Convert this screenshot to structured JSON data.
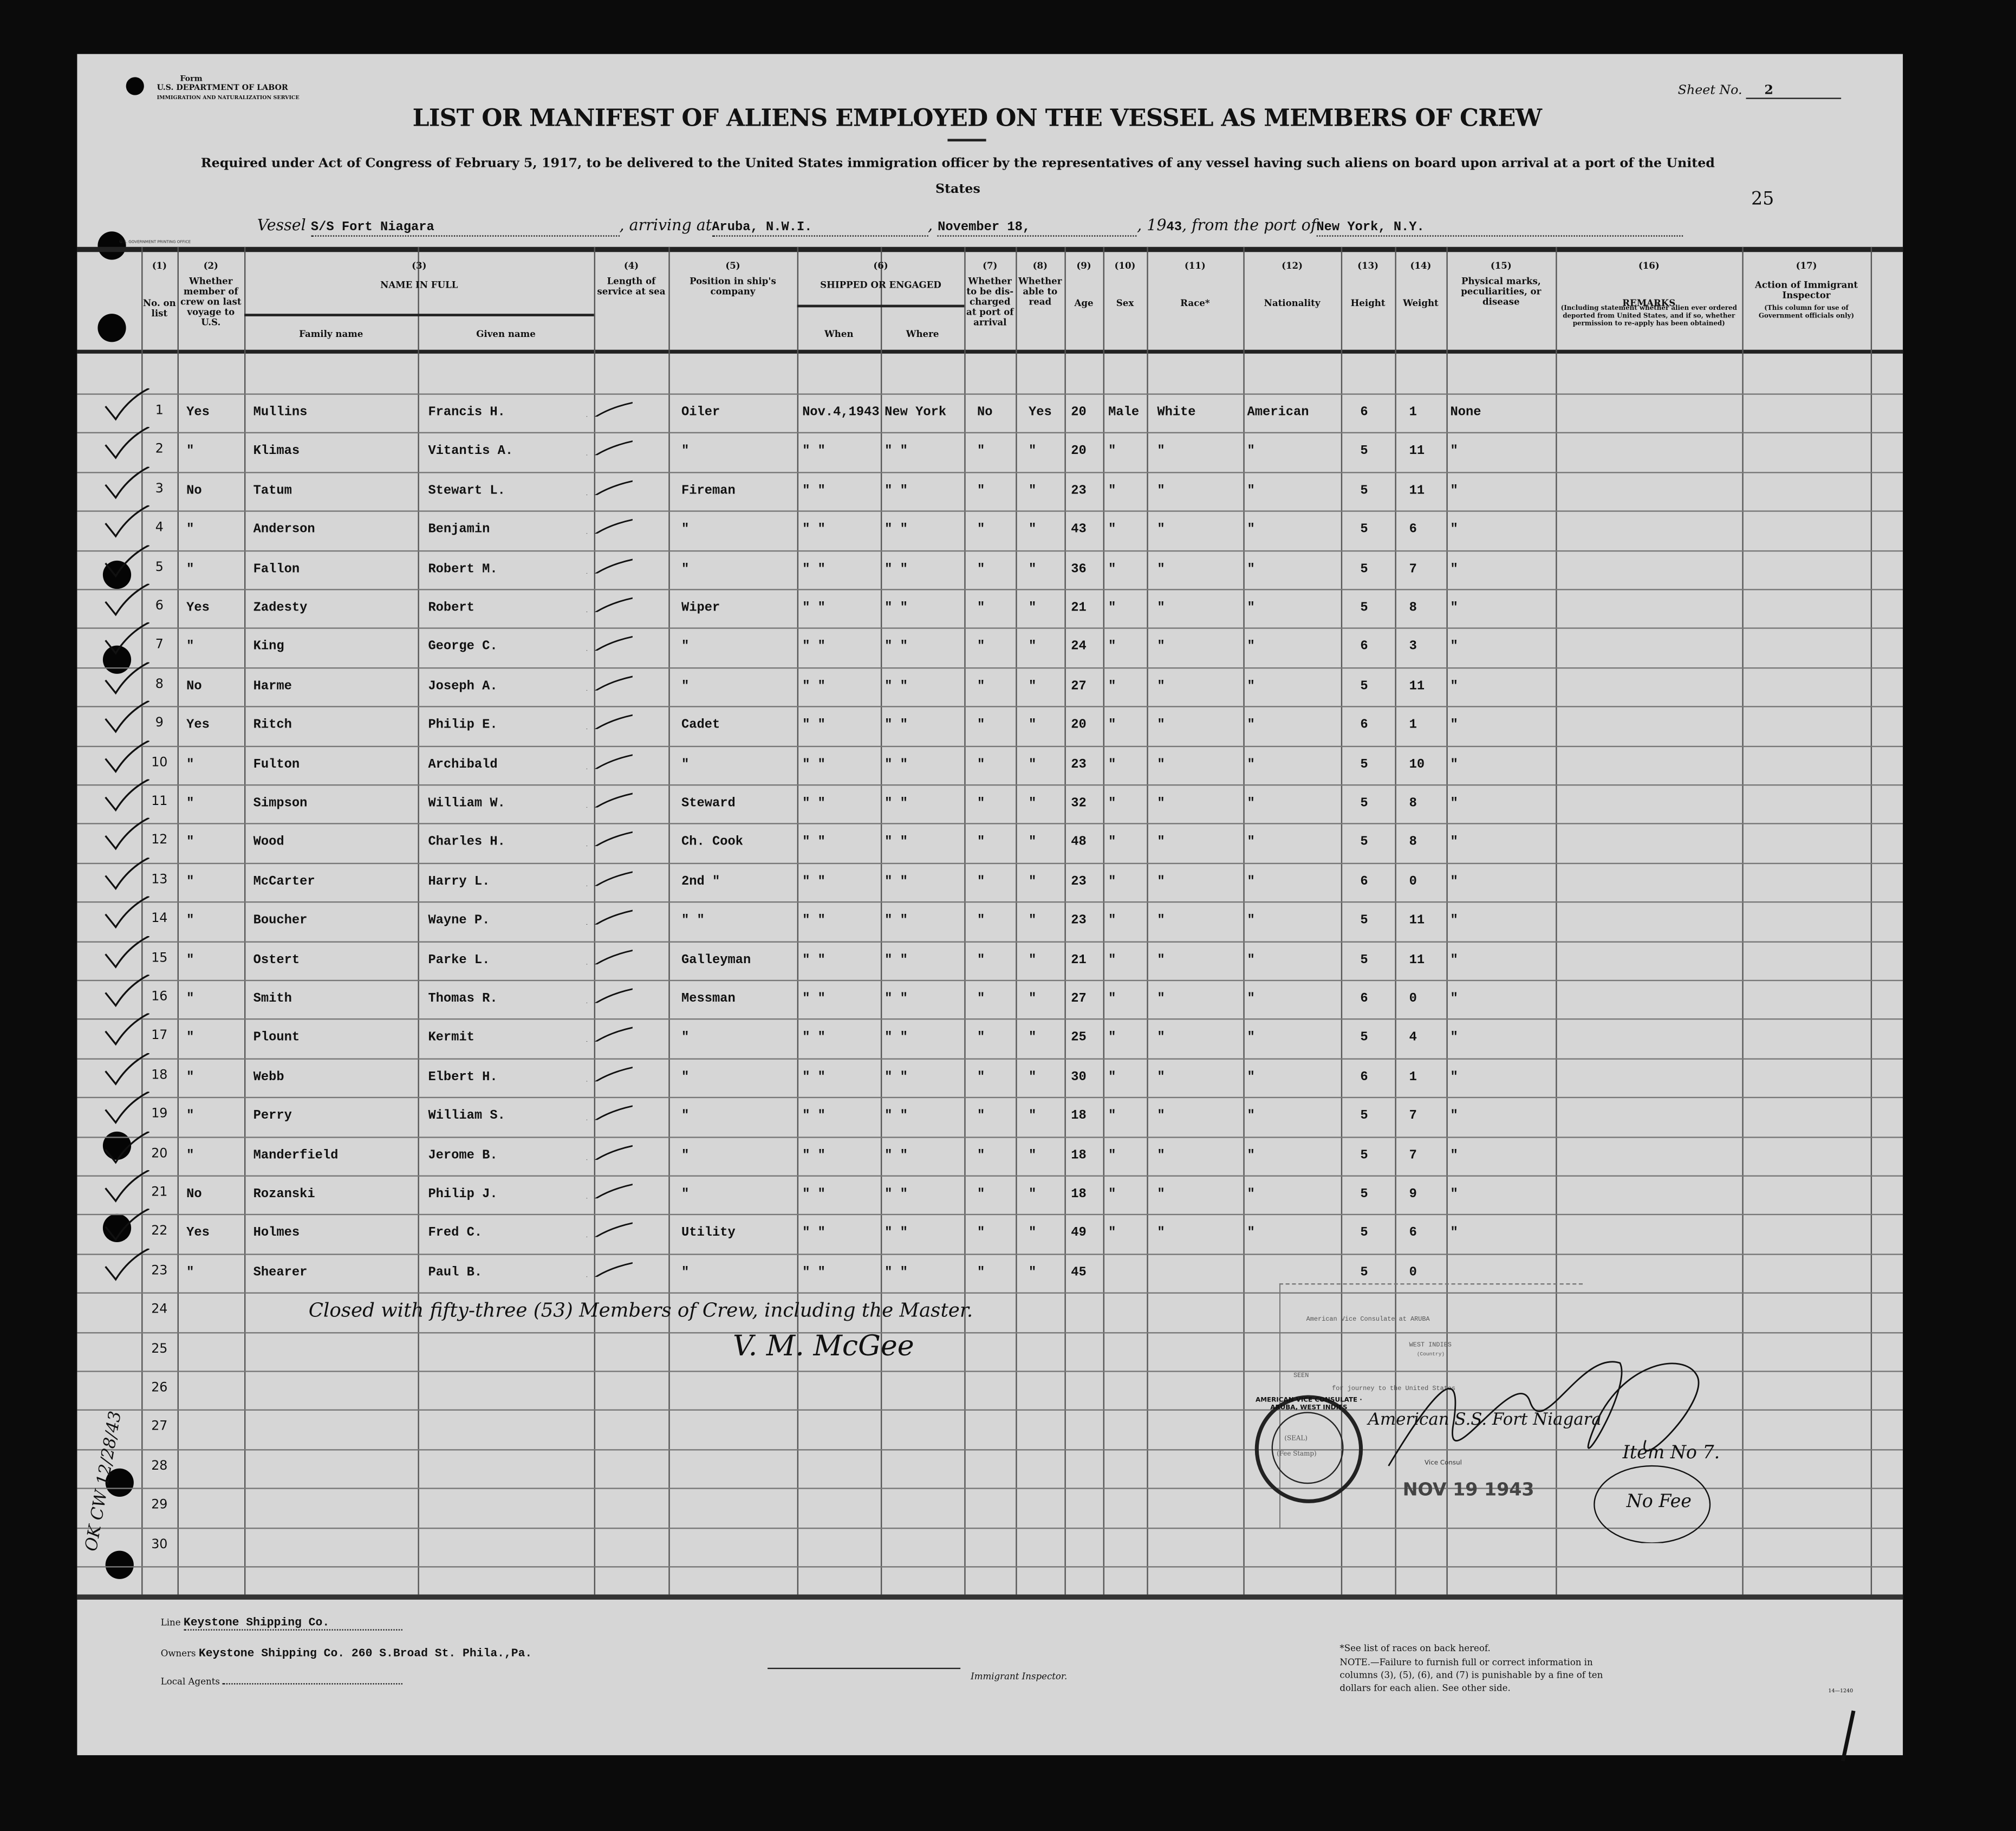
{
  "form": {
    "form_label": "Form",
    "department": "U.S. DEPARTMENT OF LABOR",
    "service": "IMMIGRATION AND NATURALIZATION SERVICE",
    "sheet_label": "Sheet No.",
    "sheet_no": "2",
    "title": "LIST OR MANIFEST OF ALIENS EMPLOYED ON THE VESSEL AS MEMBERS OF CREW",
    "subtitle": "Required under Act of Congress of February 5, 1917, to be delivered to the United States immigration officer by the representatives of any vessel having such aliens on board upon arrival at a port of the United States",
    "page_number": "25",
    "printer_mark": "U.S. GOVERNMENT PRINTING OFFICE"
  },
  "voyage": {
    "vessel_label": "Vessel",
    "vessel": "S/S Fort Niagara",
    "arriving_label": ", arriving at",
    "arriving_at": "Aruba, N.W.I.",
    "date": "November 18,",
    "year_prefix": ", 19",
    "year": "43",
    "from_label": ", from the port of",
    "from_port": "New York, N.Y."
  },
  "columns": [
    {
      "num": "(1)",
      "label": "No. on list"
    },
    {
      "num": "(2)",
      "label": "Whether member of crew on last voyage to U.S."
    },
    {
      "num": "(3)",
      "label": "NAME IN FULL",
      "sub": [
        "Family name",
        "Given name"
      ]
    },
    {
      "num": "(4)",
      "label": "Length of service at sea"
    },
    {
      "num": "(5)",
      "label": "Position in ship's company"
    },
    {
      "num": "(6)",
      "label": "SHIPPED OR ENGAGED",
      "sub": [
        "When",
        "Where"
      ]
    },
    {
      "num": "(7)",
      "label": "Whether to be dis-charged at port of arrival"
    },
    {
      "num": "(8)",
      "label": "Whether able to read"
    },
    {
      "num": "(9)",
      "label": "Age"
    },
    {
      "num": "(10)",
      "label": "Sex"
    },
    {
      "num": "(11)",
      "label": "Race*"
    },
    {
      "num": "(12)",
      "label": "Nationality"
    },
    {
      "num": "(13)",
      "label": "Height"
    },
    {
      "num": "(14)",
      "label": "Weight"
    },
    {
      "num": "(15)",
      "label": "Physical marks, peculiarities, or disease"
    },
    {
      "num": "(16)",
      "label": "REMARKS",
      "note": "(Including statement whether alien ever ordered deported from United States, and if so, whether permission to re-apply has been obtained)"
    },
    {
      "num": "(17)",
      "label": "Action of Immigrant Inspector",
      "note": "(This column for use of Government officials only)"
    }
  ],
  "rows": [
    {
      "no": "1",
      "last": "Yes",
      "family": "Mullins",
      "given": "Francis H.",
      "pos": "Oiler",
      "when": "Nov.4,1943",
      "where": "New York",
      "disch": "No",
      "read": "Yes",
      "age": "20",
      "sex": "Male",
      "race": "White",
      "nat": "American",
      "height": "6",
      "weight": "1",
      "marks": "None"
    },
    {
      "no": "2",
      "last": "\"",
      "family": "Klimas",
      "given": "Vitantis A.",
      "pos": "\"",
      "when": "\"  \"",
      "where": "\"  \"",
      "disch": "\"",
      "read": "\"",
      "age": "20",
      "sex": "\"",
      "race": "\"",
      "nat": "\"",
      "height": "5",
      "weight": "11",
      "marks": "\""
    },
    {
      "no": "3",
      "last": "No",
      "family": "Tatum",
      "given": "Stewart L.",
      "pos": "Fireman",
      "when": "\"  \"",
      "where": "\"  \"",
      "disch": "\"",
      "read": "\"",
      "age": "23",
      "sex": "\"",
      "race": "\"",
      "nat": "\"",
      "height": "5",
      "weight": "11",
      "marks": "\""
    },
    {
      "no": "4",
      "last": "\"",
      "family": "Anderson",
      "given": "Benjamin",
      "pos": "\"",
      "when": "\"  \"",
      "where": "\"  \"",
      "disch": "\"",
      "read": "\"",
      "age": "43",
      "sex": "\"",
      "race": "\"",
      "nat": "\"",
      "height": "5",
      "weight": "6",
      "marks": "\""
    },
    {
      "no": "5",
      "last": "\"",
      "family": "Fallon",
      "given": "Robert M.",
      "pos": "\"",
      "when": "\"  \"",
      "where": "\"  \"",
      "disch": "\"",
      "read": "\"",
      "age": "36",
      "sex": "\"",
      "race": "\"",
      "nat": "\"",
      "height": "5",
      "weight": "7",
      "marks": "\""
    },
    {
      "no": "6",
      "last": "Yes",
      "family": "Zadesty",
      "given": "Robert",
      "pos": "Wiper",
      "when": "\"  \"",
      "where": "\"  \"",
      "disch": "\"",
      "read": "\"",
      "age": "21",
      "sex": "\"",
      "race": "\"",
      "nat": "\"",
      "height": "5",
      "weight": "8",
      "marks": "\""
    },
    {
      "no": "7",
      "last": "\"",
      "family": "King",
      "given": "George C.",
      "pos": "\"",
      "when": "\"  \"",
      "where": "\"  \"",
      "disch": "\"",
      "read": "\"",
      "age": "24",
      "sex": "\"",
      "race": "\"",
      "nat": "\"",
      "height": "6",
      "weight": "3",
      "marks": "\""
    },
    {
      "no": "8",
      "last": "No",
      "family": "Harme",
      "given": "Joseph A.",
      "pos": "\"",
      "when": "\"  \"",
      "where": "\"  \"",
      "disch": "\"",
      "read": "\"",
      "age": "27",
      "sex": "\"",
      "race": "\"",
      "nat": "\"",
      "height": "5",
      "weight": "11",
      "marks": "\""
    },
    {
      "no": "9",
      "last": "Yes",
      "family": "Ritch",
      "given": "Philip E.",
      "pos": "Cadet",
      "when": "\"  \"",
      "where": "\"  \"",
      "disch": "\"",
      "read": "\"",
      "age": "20",
      "sex": "\"",
      "race": "\"",
      "nat": "\"",
      "height": "6",
      "weight": "1",
      "marks": "\""
    },
    {
      "no": "10",
      "last": "\"",
      "family": "Fulton",
      "given": "Archibald",
      "pos": "\"",
      "when": "\"  \"",
      "where": "\"  \"",
      "disch": "\"",
      "read": "\"",
      "age": "23",
      "sex": "\"",
      "race": "\"",
      "nat": "\"",
      "height": "5",
      "weight": "10",
      "marks": "\""
    },
    {
      "no": "11",
      "last": "\"",
      "family": "Simpson",
      "given": "William W.",
      "pos": "Steward",
      "when": "\"  \"",
      "where": "\"  \"",
      "disch": "\"",
      "read": "\"",
      "age": "32",
      "sex": "\"",
      "race": "\"",
      "nat": "\"",
      "height": "5",
      "weight": "8",
      "marks": "\""
    },
    {
      "no": "12",
      "last": "\"",
      "family": "Wood",
      "given": "Charles H.",
      "pos": "Ch. Cook",
      "when": "\"  \"",
      "where": "\"  \"",
      "disch": "\"",
      "read": "\"",
      "age": "48",
      "sex": "\"",
      "race": "\"",
      "nat": "\"",
      "height": "5",
      "weight": "8",
      "marks": "\""
    },
    {
      "no": "13",
      "last": "\"",
      "family": "McCarter",
      "given": "Harry L.",
      "pos": "2nd \"",
      "when": "\"  \"",
      "where": "\"  \"",
      "disch": "\"",
      "read": "\"",
      "age": "23",
      "sex": "\"",
      "race": "\"",
      "nat": "\"",
      "height": "6",
      "weight": "0",
      "marks": "\""
    },
    {
      "no": "14",
      "last": "\"",
      "family": "Boucher",
      "given": "Wayne P.",
      "pos": " \"  \"",
      "when": "\"  \"",
      "where": "\"  \"",
      "disch": "\"",
      "read": "\"",
      "age": "23",
      "sex": "\"",
      "race": "\"",
      "nat": "\"",
      "height": "5",
      "weight": "11",
      "marks": "\""
    },
    {
      "no": "15",
      "last": "\"",
      "family": "Ostert",
      "given": "Parke L.",
      "pos": "Galleyman",
      "when": "\"  \"",
      "where": "\"  \"",
      "disch": "\"",
      "read": "\"",
      "age": "21",
      "sex": "\"",
      "race": "\"",
      "nat": "\"",
      "height": "5",
      "weight": "11",
      "marks": "\""
    },
    {
      "no": "16",
      "last": "\"",
      "family": "Smith",
      "given": "Thomas R.",
      "pos": "Messman",
      "when": "\"  \"",
      "where": "\"  \"",
      "disch": "\"",
      "read": "\"",
      "age": "27",
      "sex": "\"",
      "race": "\"",
      "nat": "\"",
      "height": "6",
      "weight": "0",
      "marks": "\""
    },
    {
      "no": "17",
      "last": "\"",
      "family": "Plount",
      "given": "Kermit",
      "pos": "\"",
      "when": "\"  \"",
      "where": "\"  \"",
      "disch": "\"",
      "read": "\"",
      "age": "25",
      "sex": "\"",
      "race": "\"",
      "nat": "\"",
      "height": "5",
      "weight": "4",
      "marks": "\""
    },
    {
      "no": "18",
      "last": "\"",
      "family": "Webb",
      "given": "Elbert H.",
      "pos": "\"",
      "when": "\"  \"",
      "where": "\"  \"",
      "disch": "\"",
      "read": "\"",
      "age": "30",
      "sex": "\"",
      "race": "\"",
      "nat": "\"",
      "height": "6",
      "weight": "1",
      "marks": "\""
    },
    {
      "no": "19",
      "last": "\"",
      "family": "Perry",
      "given": "William S.",
      "pos": "\"",
      "when": "\"  \"",
      "where": "\"  \"",
      "disch": "\"",
      "read": "\"",
      "age": "18",
      "sex": "\"",
      "race": "\"",
      "nat": "\"",
      "height": "5",
      "weight": "7",
      "marks": "\""
    },
    {
      "no": "20",
      "last": "\"",
      "family": "Manderfield",
      "given": "Jerome B.",
      "pos": "\"",
      "when": "\"  \"",
      "where": "\"  \"",
      "disch": "\"",
      "read": "\"",
      "age": "18",
      "sex": "\"",
      "race": "\"",
      "nat": "\"",
      "height": "5",
      "weight": "7",
      "marks": "\""
    },
    {
      "no": "21",
      "last": "No",
      "family": "Rozanski",
      "given": "Philip J.",
      "pos": "\"",
      "when": "\"  \"",
      "where": "\"  \"",
      "disch": "\"",
      "read": "\"",
      "age": "18",
      "sex": "\"",
      "race": "\"",
      "nat": "\"",
      "height": "5",
      "weight": "9",
      "marks": "\""
    },
    {
      "no": "22",
      "last": "Yes",
      "family": "Holmes",
      "given": "Fred C.",
      "pos": "Utility",
      "when": "\"  \"",
      "where": "\"  \"",
      "disch": "\"",
      "read": "\"",
      "age": "49",
      "sex": "\"",
      "race": "\"",
      "nat": "\"",
      "height": "5",
      "weight": "6",
      "marks": "\""
    },
    {
      "no": "23",
      "last": "\"",
      "family": "Shearer",
      "given": "Paul B.",
      "pos": "\"",
      "when": "\"  \"",
      "where": "\"  \"",
      "disch": "\"",
      "read": "\"",
      "age": "45",
      "sex": "",
      "race": "",
      "nat": "",
      "height": "5",
      "weight": "0",
      "marks": ""
    }
  ],
  "empty_row_numbers": [
    "24",
    "25",
    "26",
    "27",
    "28",
    "29",
    "30"
  ],
  "handwritten": {
    "closing_note": "Closed with fifty-three (53) Members of Crew, including the Master.",
    "signature": "V. M. McGee",
    "margin_note": "OK  CW  12/28/43",
    "stamp_vessel": "American S.S. Fort Niagara",
    "item_no": "Item No 7.",
    "no_fee": "No Fee"
  },
  "consulate_stamp": {
    "seal_text": "AMERICAN VICE CONSULATE · ARUBA, WEST INDIES",
    "consulate_line": "American Vice Consulate at ARUBA",
    "country_line": "WEST INDIES",
    "country_label": "(Country)",
    "seen_label": "SEEN",
    "journey_line": "for journey to the United States",
    "seal_label": "(SEAL)",
    "fee_label": "(Fee Stamp)",
    "vice_consul": "Vice Consul",
    "date_stamp": "NOV 19 1943"
  },
  "footer": {
    "line_label": "Line",
    "line_value": "Keystone Shipping Co.",
    "owners_label": "Owners",
    "owners_value": "Keystone Shipping Co. 260 S.Broad St. Phila.,Pa.",
    "agents_label": "Local Agents",
    "inspector_label": "Immigrant Inspector.",
    "races_note": "*See list of races on back hereof.",
    "note": "NOTE.—Failure to furnish full or correct information in columns (3), (5), (6), and (7) is punishable by a fine of ten dollars for each alien.  See other side.",
    "form_code": "14—1240"
  }
}
